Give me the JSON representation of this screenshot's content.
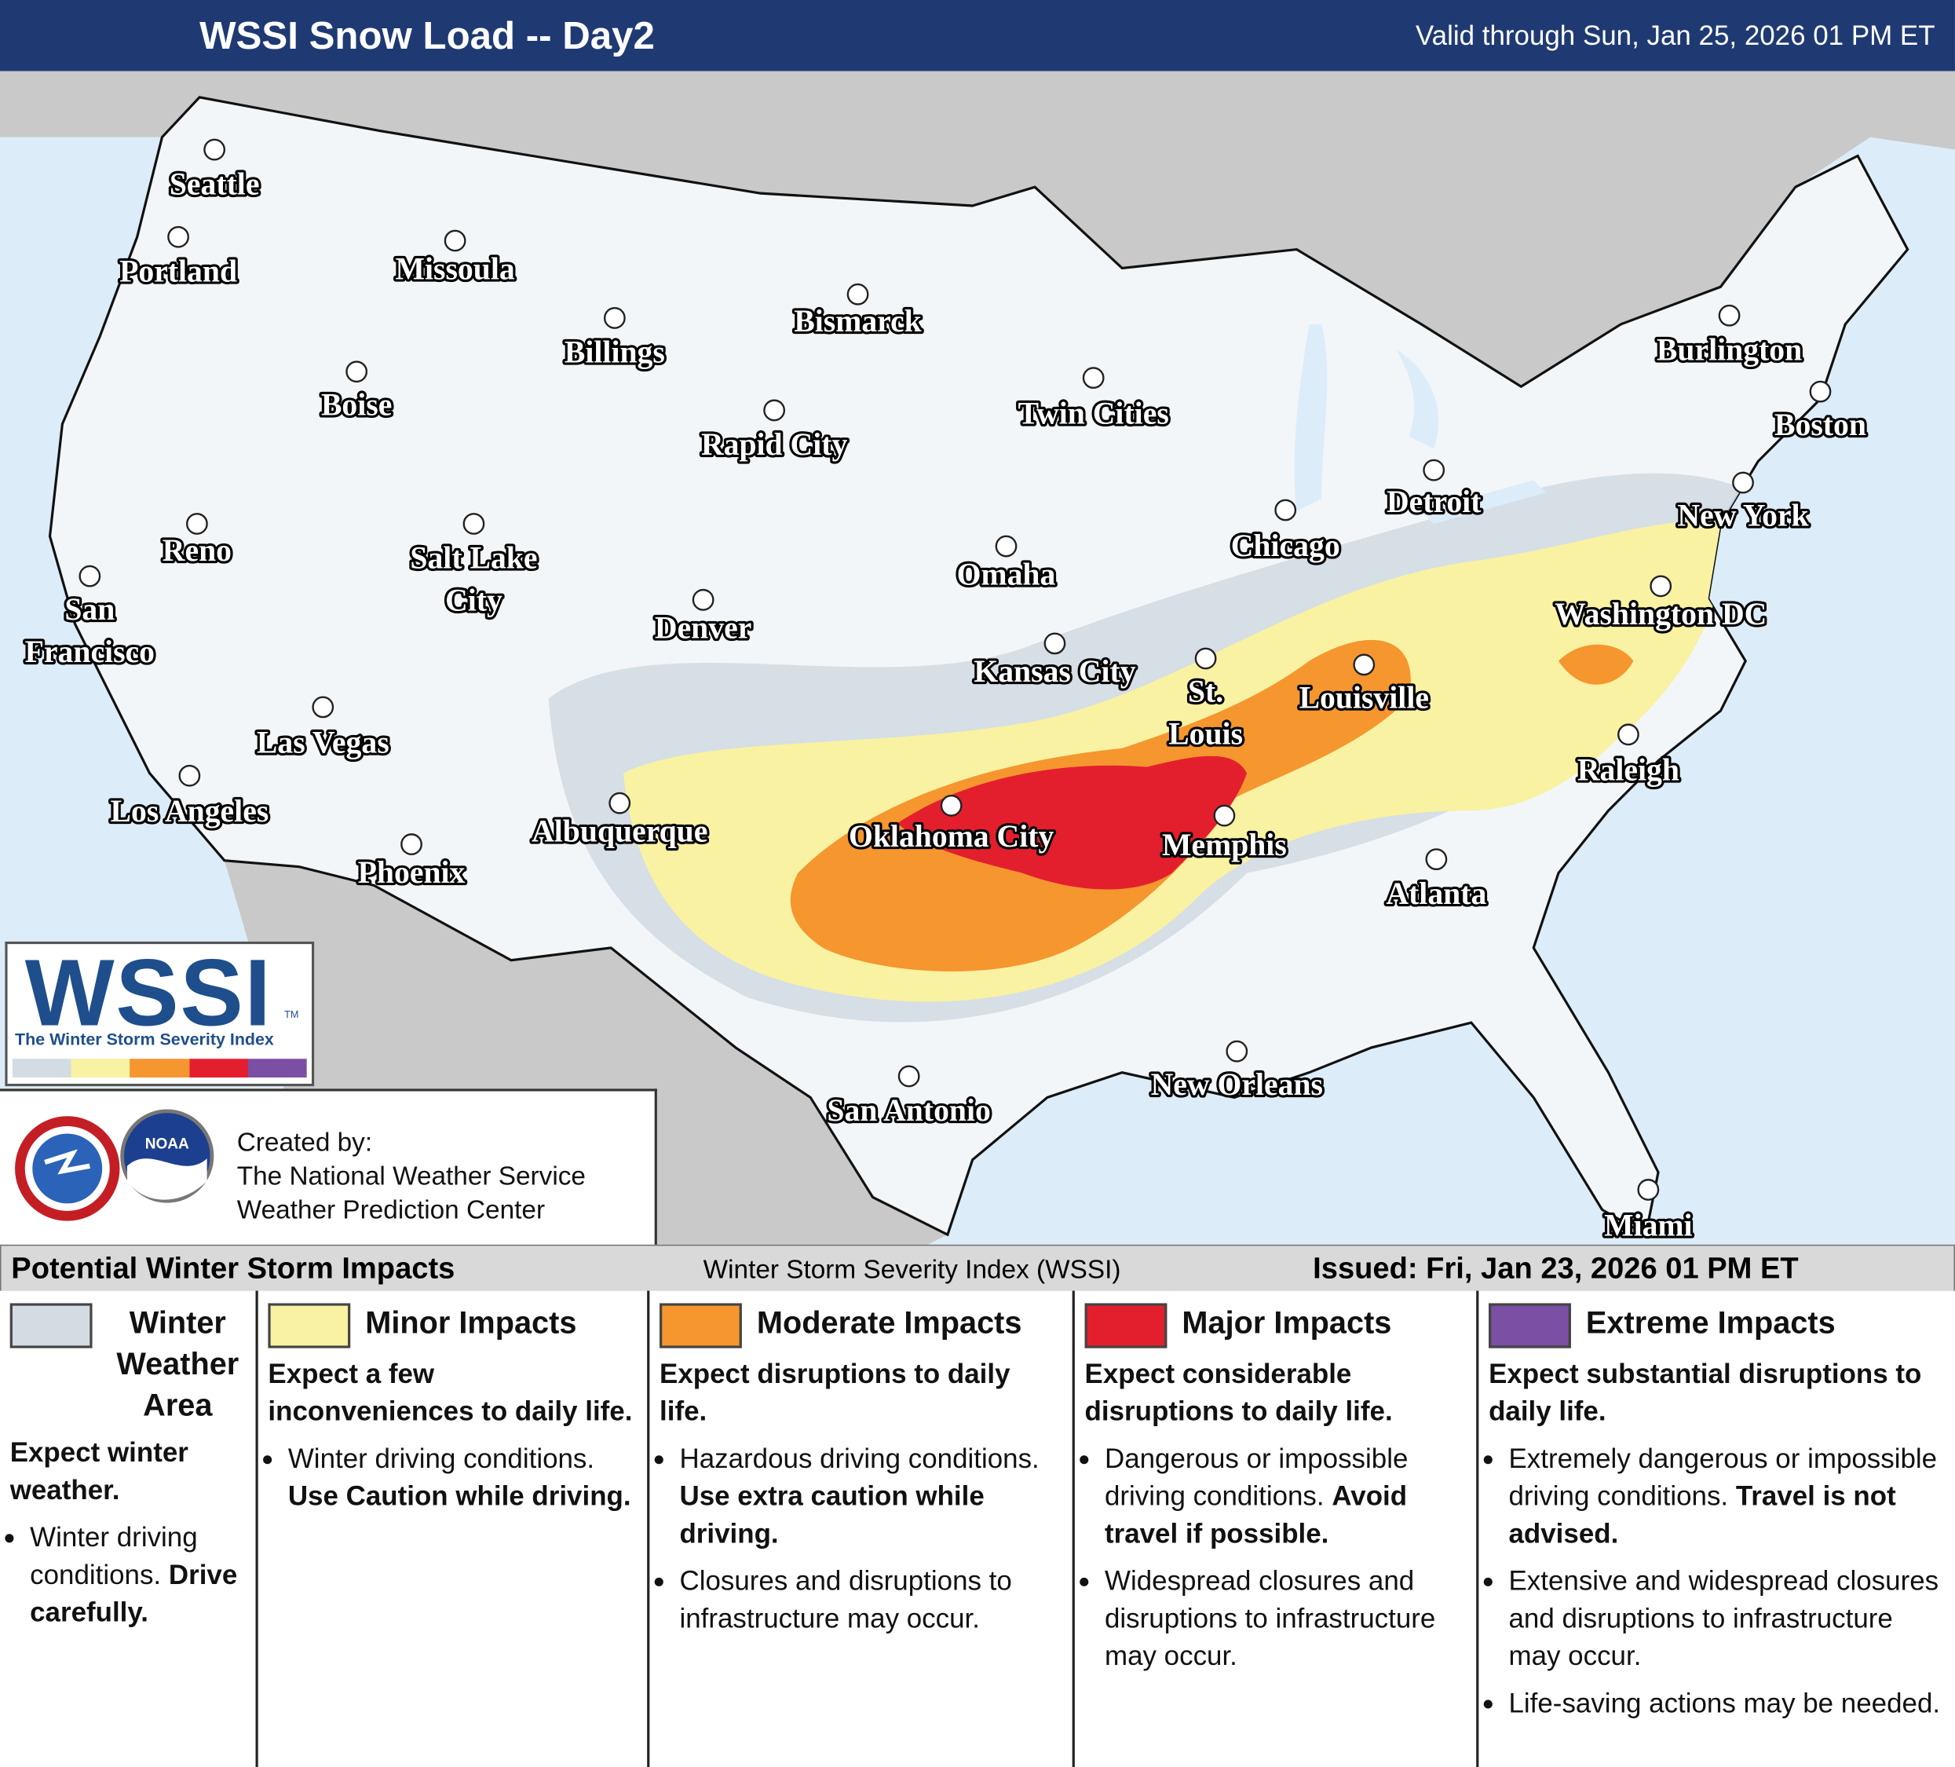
{
  "header": {
    "title": "WSSI Snow Load -- Day2",
    "valid": "Valid through Sun, Jan 25, 2026 01 PM ET"
  },
  "map": {
    "cities": [
      [
        "Seattle"
      ],
      [
        "Portland"
      ],
      [
        "Missoula"
      ],
      [
        "Billings"
      ],
      [
        "Bismarck"
      ],
      [
        "Boise"
      ],
      [
        "Twin Cities"
      ],
      [
        "Rapid City"
      ],
      [
        "Burlington"
      ],
      [
        "Boston"
      ],
      [
        "Reno"
      ],
      [
        "Salt Lake",
        "City"
      ],
      [
        "Detroit"
      ],
      [
        "Chicago"
      ],
      [
        "New York"
      ],
      [
        "Omaha"
      ],
      [
        "San",
        "Francisco"
      ],
      [
        "Denver"
      ],
      [
        "Washington DC"
      ],
      [
        "Kansas City"
      ],
      [
        "St.",
        "Louis"
      ],
      [
        "Louisville"
      ],
      [
        "Las Vegas"
      ],
      [
        "Raleigh"
      ],
      [
        "Los Angeles"
      ],
      [
        "Albuquerque"
      ],
      [
        "Oklahoma City"
      ],
      [
        "Memphis"
      ],
      [
        "Phoenix"
      ],
      [
        "Atlanta"
      ],
      [
        "New Orleans"
      ],
      [
        "San Antonio"
      ],
      [
        "Miami"
      ]
    ]
  },
  "logo": {
    "name": "WSSI",
    "mark": "TM",
    "subtitle": "The Winter Storm Severity Index",
    "agency": "NOAA"
  },
  "credits": [
    "Created by:",
    "The National Weather Service",
    "Weather Prediction Center"
  ],
  "legend": {
    "heading": "Potential Winter Storm Impacts",
    "index": "Winter Storm Severity Index (WSSI)",
    "issued": "Issued: Fri, Jan 23, 2026 01 PM ET",
    "levels": [
      {
        "title": "Winter Weather Area",
        "color": "#d3dce3",
        "summary": "Expect winter weather.",
        "bullets": [
          {
            "text": "Winter driving conditions.",
            "bold": "Drive carefully."
          }
        ]
      },
      {
        "title": "Minor Impacts",
        "color": "#f8f2a2",
        "summary": "Expect a few inconveniences to daily life.",
        "bullets": [
          {
            "text": "Winter driving conditions.",
            "bold": "Use Caution while driving."
          }
        ]
      },
      {
        "title": "Moderate Impacts",
        "color": "#f5962f",
        "summary": "Expect disruptions to daily life.",
        "bullets": [
          {
            "text": "Hazardous driving conditions.",
            "bold": "Use extra caution while driving."
          },
          {
            "text": "Closures and disruptions to infrastructure may occur."
          }
        ]
      },
      {
        "title": "Major Impacts",
        "color": "#e31f2d",
        "summary": "Expect considerable disruptions to daily life.",
        "bullets": [
          {
            "text": "Dangerous or impossible driving conditions.",
            "bold": "Avoid travel if possible."
          },
          {
            "text": "Widespread closures and disruptions to infrastructure may occur."
          }
        ]
      },
      {
        "title": "Extreme Impacts",
        "color": "#7b4fa3",
        "summary": "Expect substantial disruptions to daily life.",
        "bullets": [
          {
            "text": "Extremely dangerous or impossible driving conditions.",
            "bold": "Travel is not advised."
          },
          {
            "text": "Extensive and widespread closures and disruptions to infrastructure may occur."
          },
          {
            "text": "Life-saving actions may be needed."
          }
        ]
      }
    ]
  }
}
